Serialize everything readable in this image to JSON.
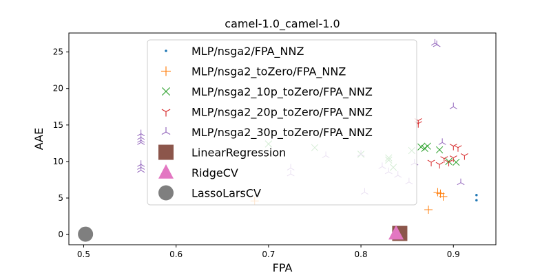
{
  "chart_data": {
    "type": "scatter",
    "title": "camel-1.0_camel-1.0",
    "xlabel": "FPA",
    "ylabel": "AAE",
    "xlim": [
      0.484,
      0.946
    ],
    "ylim": [
      -1.4,
      27.6
    ],
    "xticks": [
      0.5,
      0.6,
      0.7,
      0.8,
      0.9
    ],
    "xtick_labels": [
      "0.5",
      "0.6",
      "0.7",
      "0.8",
      "0.9"
    ],
    "yticks": [
      0,
      5,
      10,
      15,
      20,
      25
    ],
    "ytick_labels": [
      "0",
      "5",
      "10",
      "15",
      "20",
      "25"
    ],
    "grid": false,
    "legend_position": "upper-center",
    "series": [
      {
        "name": "MLP/nsga2/FPA_NNZ",
        "marker": "dot",
        "color": "#1f77b4",
        "points": [
          [
            0.925,
            5.4
          ],
          [
            0.925,
            4.7
          ]
        ]
      },
      {
        "name": "MLP/nsga2_toZero/FPA_NNZ",
        "marker": "plus",
        "color": "#ff7f0e",
        "points": [
          [
            0.685,
            4.6
          ],
          [
            0.873,
            3.4
          ],
          [
            0.883,
            5.8
          ],
          [
            0.886,
            5.6
          ],
          [
            0.889,
            5.2
          ]
        ]
      },
      {
        "name": "MLP/nsga2_10p_toZero/FPA_NNZ",
        "marker": "x",
        "color": "#2ca02c",
        "points": [
          [
            0.7,
            12.4
          ],
          [
            0.75,
            11.9
          ],
          [
            0.8,
            11.0
          ],
          [
            0.83,
            10.2
          ],
          [
            0.83,
            10.5
          ],
          [
            0.835,
            9.2
          ],
          [
            0.855,
            11.5
          ],
          [
            0.865,
            12.0
          ],
          [
            0.869,
            11.8
          ],
          [
            0.872,
            12.1
          ],
          [
            0.885,
            11.6
          ],
          [
            0.895,
            10.0
          ],
          [
            0.903,
            9.9
          ]
        ]
      },
      {
        "name": "MLP/nsga2_20p_toZero/FPA_NNZ",
        "marker": "tri_down",
        "color": "#d62728",
        "points": [
          [
            0.862,
            15.6
          ],
          [
            0.862,
            15.2
          ],
          [
            0.876,
            9.9
          ],
          [
            0.885,
            9.6
          ],
          [
            0.89,
            10.4
          ],
          [
            0.895,
            9.9
          ],
          [
            0.9,
            10.5
          ],
          [
            0.9,
            12.1
          ],
          [
            0.905,
            11.9
          ],
          [
            0.912,
            10.8
          ]
        ]
      },
      {
        "name": "MLP/nsga2_30p_toZero/FPA_NNZ",
        "marker": "tri_up",
        "color": "#9467bd",
        "points": [
          [
            0.562,
            13.8
          ],
          [
            0.562,
            13.3
          ],
          [
            0.562,
            12.9
          ],
          [
            0.562,
            12.6
          ],
          [
            0.562,
            9.6
          ],
          [
            0.562,
            9.2
          ],
          [
            0.562,
            8.8
          ],
          [
            0.724,
            9.1
          ],
          [
            0.724,
            8.3
          ],
          [
            0.762,
            10.8
          ],
          [
            0.8,
            11.0
          ],
          [
            0.804,
            5.8
          ],
          [
            0.823,
            9.3
          ],
          [
            0.83,
            8.6
          ],
          [
            0.84,
            8.1
          ],
          [
            0.852,
            7.2
          ],
          [
            0.858,
            9.8
          ],
          [
            0.88,
            26.2
          ],
          [
            0.882,
            26.0
          ],
          [
            0.888,
            12.6
          ],
          [
            0.9,
            17.5
          ],
          [
            0.908,
            7.1
          ]
        ]
      },
      {
        "name": "LinearRegression",
        "marker": "square",
        "color": "#8c564b",
        "points": [
          [
            0.842,
            0.15
          ]
        ]
      },
      {
        "name": "RidgeCV",
        "marker": "triangle",
        "color": "#e377c2",
        "points": [
          [
            0.838,
            0.15
          ]
        ]
      },
      {
        "name": "LassoLarsCV",
        "marker": "circle",
        "color": "#7f7f7f",
        "points": [
          [
            0.502,
            0.05
          ]
        ]
      }
    ]
  }
}
